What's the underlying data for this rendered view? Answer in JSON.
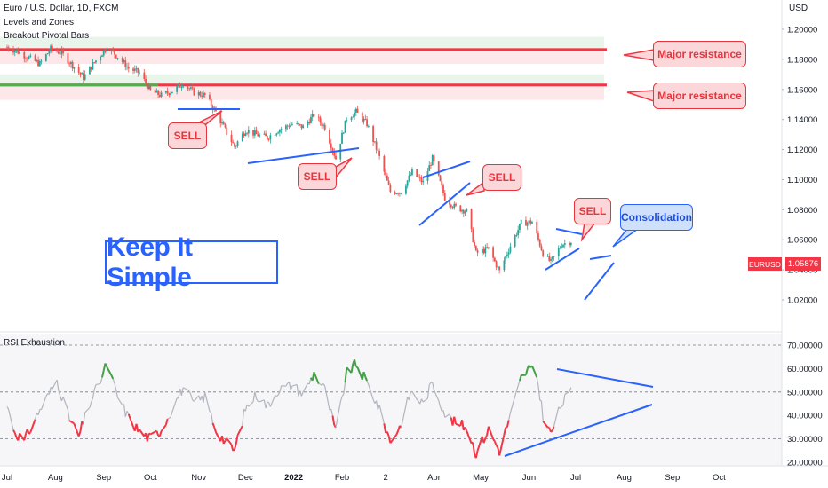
{
  "header": {
    "symbol_line": "Euro / U.S. Dollar, 1D, FXCM",
    "indicator_1": "Levels and Zones",
    "indicator_2": "Breakout Pivotal Bars",
    "currency": "USD"
  },
  "rsi_panel": {
    "title": "RSI Exhaustion"
  },
  "annotations": {
    "major_resistance_1": "Major resistance",
    "major_resistance_2": "Major resistance",
    "sell_1": "SELL",
    "sell_2": "SELL",
    "sell_3": "SELL",
    "sell_4": "SELL",
    "consolidation": "Consolidation",
    "keep_it_simple": "Keep It Simple"
  },
  "last_price": {
    "label": "EURUSD",
    "value": "1.05876"
  },
  "colors": {
    "up_candle": "#26a69a",
    "down_candle": "#ef5350",
    "resistance_line": "#f23645",
    "support_green": "#4caf50",
    "trendline": "#2962ff",
    "rsi_neutral": "#b2b5be",
    "rsi_overbought": "#43a047",
    "rsi_oversold": "#f23645"
  },
  "chart_data": [
    {
      "type": "candlestick",
      "title": "Euro / U.S. Dollar, 1D, FXCM",
      "x_axis": {
        "tick_labels": [
          "Jul",
          "Aug",
          "Sep",
          "Oct",
          "Nov",
          "Dec",
          "2022",
          "Feb",
          "2",
          "Apr",
          "May",
          "Jun",
          "Jul",
          "Aug",
          "Sep",
          "Oct"
        ],
        "range": [
          "2021-07-01",
          "2022-10-31"
        ]
      },
      "y_axis": {
        "label": "USD",
        "ylim": [
          1.02,
          1.21
        ],
        "tick_labels": [
          "1.20000",
          "1.18000",
          "1.16000",
          "1.14000",
          "1.12000",
          "1.10000",
          "1.08000",
          "1.06000",
          "1.04000",
          "1.02000"
        ]
      },
      "levels": [
        {
          "name": "Major resistance",
          "value": 1.1865
        },
        {
          "name": "Major resistance",
          "value": 1.163
        }
      ],
      "price_path": [
        [
          "2021-07-01",
          1.188
        ],
        [
          "2021-07-08",
          1.185
        ],
        [
          "2021-07-15",
          1.181
        ],
        [
          "2021-07-22",
          1.177
        ],
        [
          "2021-07-29",
          1.187
        ],
        [
          "2021-08-05",
          1.184
        ],
        [
          "2021-08-12",
          1.176
        ],
        [
          "2021-08-19",
          1.168
        ],
        [
          "2021-08-26",
          1.178
        ],
        [
          "2021-09-03",
          1.188
        ],
        [
          "2021-09-10",
          1.182
        ],
        [
          "2021-09-17",
          1.174
        ],
        [
          "2021-09-24",
          1.171
        ],
        [
          "2021-10-01",
          1.159
        ],
        [
          "2021-10-08",
          1.156
        ],
        [
          "2021-10-15",
          1.159
        ],
        [
          "2021-10-22",
          1.164
        ],
        [
          "2021-10-29",
          1.158
        ],
        [
          "2021-11-05",
          1.156
        ],
        [
          "2021-11-12",
          1.145
        ],
        [
          "2021-11-19",
          1.131
        ],
        [
          "2021-11-24",
          1.122
        ],
        [
          "2021-12-01",
          1.133
        ],
        [
          "2021-12-08",
          1.13
        ],
        [
          "2021-12-15",
          1.128
        ],
        [
          "2021-12-22",
          1.133
        ],
        [
          "2021-12-31",
          1.137
        ],
        [
          "2022-01-07",
          1.135
        ],
        [
          "2022-01-14",
          1.143
        ],
        [
          "2022-01-21",
          1.135
        ],
        [
          "2022-01-28",
          1.114
        ],
        [
          "2022-02-04",
          1.141
        ],
        [
          "2022-02-10",
          1.145
        ],
        [
          "2022-02-17",
          1.137
        ],
        [
          "2022-02-24",
          1.118
        ],
        [
          "2022-03-04",
          1.092
        ],
        [
          "2022-03-11",
          1.092
        ],
        [
          "2022-03-18",
          1.105
        ],
        [
          "2022-03-25",
          1.098
        ],
        [
          "2022-03-31",
          1.114
        ],
        [
          "2022-04-08",
          1.088
        ],
        [
          "2022-04-14",
          1.082
        ],
        [
          "2022-04-22",
          1.079
        ],
        [
          "2022-04-28",
          1.051
        ],
        [
          "2022-05-06",
          1.054
        ],
        [
          "2022-05-13",
          1.039
        ],
        [
          "2022-05-20",
          1.056
        ],
        [
          "2022-05-27",
          1.071
        ],
        [
          "2022-06-03",
          1.072
        ],
        [
          "2022-06-10",
          1.051
        ],
        [
          "2022-06-15",
          1.045
        ],
        [
          "2022-06-22",
          1.057
        ],
        [
          "2022-06-28",
          1.059
        ]
      ],
      "last_price": 1.05876
    },
    {
      "type": "line",
      "title": "RSI Exhaustion",
      "y_axis": {
        "ylim": [
          20,
          70
        ],
        "tick_labels": [
          "70.00000",
          "60.00000",
          "50.00000",
          "40.00000",
          "30.00000",
          "20.00000"
        ],
        "reference_lines": [
          70,
          50,
          30
        ]
      },
      "rsi_path": [
        [
          "2021-07-01",
          44
        ],
        [
          "2021-07-06",
          33
        ],
        [
          "2021-07-12",
          29
        ],
        [
          "2021-07-20",
          40
        ],
        [
          "2021-07-26",
          47
        ],
        [
          "2021-08-02",
          55
        ],
        [
          "2021-08-09",
          40
        ],
        [
          "2021-08-16",
          31
        ],
        [
          "2021-08-23",
          45
        ],
        [
          "2021-08-30",
          55
        ],
        [
          "2021-09-03",
          62
        ],
        [
          "2021-09-10",
          48
        ],
        [
          "2021-09-17",
          39
        ],
        [
          "2021-09-24",
          33
        ],
        [
          "2021-10-01",
          30
        ],
        [
          "2021-10-08",
          34
        ],
        [
          "2021-10-15",
          43
        ],
        [
          "2021-10-22",
          52
        ],
        [
          "2021-10-29",
          45
        ],
        [
          "2021-11-05",
          48
        ],
        [
          "2021-11-12",
          34
        ],
        [
          "2021-11-19",
          28
        ],
        [
          "2021-11-24",
          25
        ],
        [
          "2021-12-01",
          43
        ],
        [
          "2021-12-08",
          49
        ],
        [
          "2021-12-15",
          44
        ],
        [
          "2021-12-22",
          51
        ],
        [
          "2021-12-31",
          53
        ],
        [
          "2022-01-07",
          49
        ],
        [
          "2022-01-14",
          58
        ],
        [
          "2022-01-21",
          51
        ],
        [
          "2022-01-28",
          33
        ],
        [
          "2022-02-04",
          58
        ],
        [
          "2022-02-10",
          62
        ],
        [
          "2022-02-17",
          54
        ],
        [
          "2022-02-24",
          44
        ],
        [
          "2022-03-04",
          29
        ],
        [
          "2022-03-10",
          35
        ],
        [
          "2022-03-17",
          50
        ],
        [
          "2022-03-25",
          45
        ],
        [
          "2022-03-31",
          54
        ],
        [
          "2022-04-08",
          41
        ],
        [
          "2022-04-14",
          37
        ],
        [
          "2022-04-22",
          35
        ],
        [
          "2022-04-28",
          24
        ],
        [
          "2022-05-06",
          34
        ],
        [
          "2022-05-13",
          25
        ],
        [
          "2022-05-20",
          40
        ],
        [
          "2022-05-27",
          56
        ],
        [
          "2022-06-01",
          60
        ],
        [
          "2022-06-06",
          57
        ],
        [
          "2022-06-10",
          40
        ],
        [
          "2022-06-15",
          32
        ],
        [
          "2022-06-22",
          45
        ],
        [
          "2022-06-28",
          50
        ]
      ]
    }
  ]
}
